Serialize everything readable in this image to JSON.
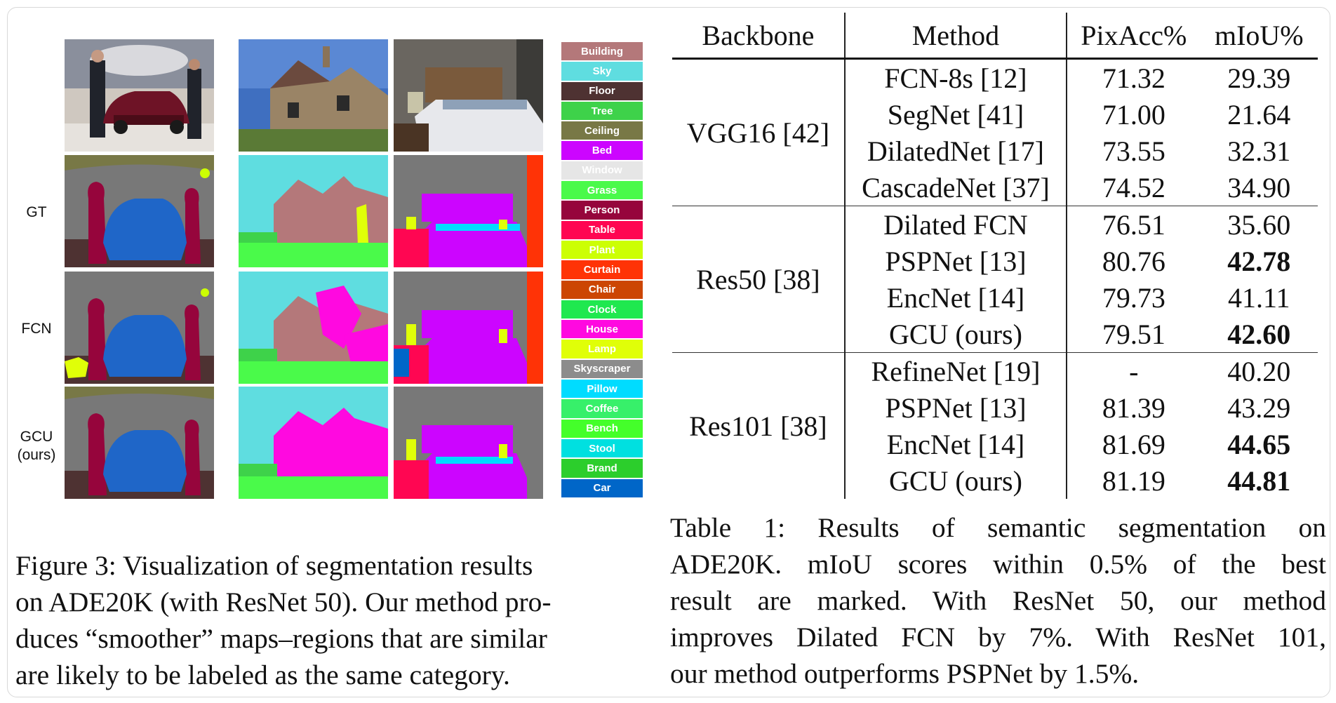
{
  "figure": {
    "row_labels": [
      "GT",
      "FCN",
      "GCU\n(ours)"
    ],
    "legend": [
      {
        "label": "Building",
        "color": "#b4787a"
      },
      {
        "label": "Sky",
        "color": "#5fdde0"
      },
      {
        "label": "Floor",
        "color": "#4e3232"
      },
      {
        "label": "Tree",
        "color": "#3ed24a"
      },
      {
        "label": "Ceiling",
        "color": "#787846"
      },
      {
        "label": "Bed",
        "color": "#cc05ff"
      },
      {
        "label": "Window",
        "color": "#e6e6e6"
      },
      {
        "label": "Grass",
        "color": "#4afa4a"
      },
      {
        "label": "Person",
        "color": "#96053c"
      },
      {
        "label": "Table",
        "color": "#ff0652"
      },
      {
        "label": "Plant",
        "color": "#ccff04"
      },
      {
        "label": "Curtain",
        "color": "#ff3306"
      },
      {
        "label": "Chair",
        "color": "#cc4603"
      },
      {
        "label": "Clock",
        "color": "#1fe84f"
      },
      {
        "label": "House",
        "color": "#ff09e0"
      },
      {
        "label": "Lamp",
        "color": "#e0ff08"
      },
      {
        "label": "Skyscraper",
        "color": "#8c8c8c"
      },
      {
        "label": "Pillow",
        "color": "#00dcff"
      },
      {
        "label": "Coffee",
        "color": "#37f06a"
      },
      {
        "label": "Bench",
        "color": "#44ff2a"
      },
      {
        "label": "Stool",
        "color": "#00e0e0"
      },
      {
        "label": "Brand",
        "color": "#2cce2c"
      },
      {
        "label": "Car",
        "color": "#0066c8"
      }
    ]
  },
  "table": {
    "headers": [
      "Backbone",
      "Method",
      "PixAcc%",
      "mIoU%"
    ],
    "groups": [
      {
        "backbone": "VGG16 [42]",
        "rows": [
          {
            "method": "FCN-8s [12]",
            "pixacc": "71.32",
            "miou": "29.39",
            "bold": false
          },
          {
            "method": "SegNet [41]",
            "pixacc": "71.00",
            "miou": "21.64",
            "bold": false
          },
          {
            "method": "DilatedNet [17]",
            "pixacc": "73.55",
            "miou": "32.31",
            "bold": false
          },
          {
            "method": "CascadeNet [37]",
            "pixacc": "74.52",
            "miou": "34.90",
            "bold": false
          }
        ]
      },
      {
        "backbone": "Res50 [38]",
        "rows": [
          {
            "method": "Dilated FCN",
            "pixacc": "76.51",
            "miou": "35.60",
            "bold": false
          },
          {
            "method": "PSPNet [13]",
            "pixacc": "80.76",
            "miou": "42.78",
            "bold": true
          },
          {
            "method": "EncNet [14]",
            "pixacc": "79.73",
            "miou": "41.11",
            "bold": false
          },
          {
            "method": "GCU (ours)",
            "pixacc": "79.51",
            "miou": "42.60",
            "bold": true
          }
        ]
      },
      {
        "backbone": "Res101 [38]",
        "rows": [
          {
            "method": "RefineNet [19]",
            "pixacc": "-",
            "miou": "40.20",
            "bold": false
          },
          {
            "method": "PSPNet [13]",
            "pixacc": "81.39",
            "miou": "43.29",
            "bold": false
          },
          {
            "method": "EncNet [14]",
            "pixacc": "81.69",
            "miou": "44.65",
            "bold": true
          },
          {
            "method": "GCU (ours)",
            "pixacc": "81.19",
            "miou": "44.81",
            "bold": true
          }
        ]
      }
    ]
  },
  "captions": {
    "figure_lines": [
      "Figure 3: Visualization of segmentation results",
      "on ADE20K (with ResNet 50). Our method pro-",
      "duces “smoother” maps–regions that are similar",
      "are likely to be labeled as the same category."
    ],
    "table_lines": [
      "Table 1: Results of semantic segmentation on",
      "ADE20K. mIoU scores within 0.5% of the best",
      "result are marked. With ResNet 50, our method",
      "improves Dilated FCN by 7%. With ResNet 101,",
      "our method outperforms PSPNet by 1.5%."
    ]
  }
}
